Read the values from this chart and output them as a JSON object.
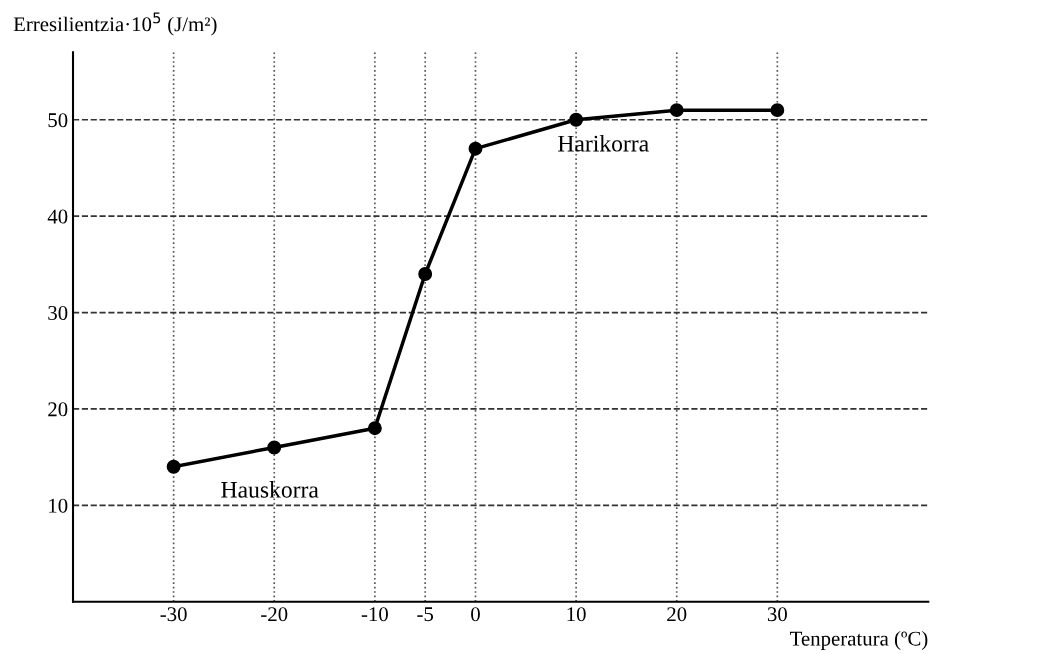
{
  "chart_data": {
    "type": "line",
    "x": [
      -30,
      -20,
      -10,
      -5,
      0,
      10,
      20,
      30
    ],
    "series": [
      {
        "color": "#000000",
        "values": [
          14,
          16,
          18,
          34,
          47,
          50,
          51,
          51
        ]
      }
    ],
    "xlabel": "Tenperatura (ºC)",
    "ylabel": "Erresilientzia·10$^{5}$ (J/m²)",
    "xlim": [
      -40,
      45
    ],
    "ylim": [
      0,
      57
    ],
    "xticks": [
      -30,
      -20,
      -10,
      -5,
      0,
      10,
      20,
      30
    ],
    "yticks": [
      10,
      20,
      30,
      40,
      50
    ],
    "grid": true,
    "marker": "circle",
    "line_style": "solid",
    "legend": false,
    "annotations": [
      "Hauskorra",
      "Harikorra"
    ]
  }
}
